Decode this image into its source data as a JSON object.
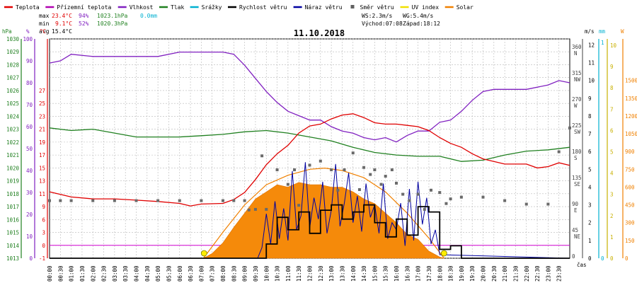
{
  "chart_data": {
    "type": "line",
    "title": "11.10.2018",
    "legend": [
      {
        "label": "Teplota",
        "color": "#e00000",
        "marker": "line"
      },
      {
        "label": "Přízemní teplota",
        "color": "#b000b0",
        "marker": "line"
      },
      {
        "label": "Vlhkost",
        "color": "#8020c0",
        "marker": "line"
      },
      {
        "label": "Tlak",
        "color": "#208020",
        "marker": "line"
      },
      {
        "label": "Srážky",
        "color": "#00b0d0",
        "marker": "line"
      },
      {
        "label": "Rychlost větru",
        "color": "#000000",
        "marker": "line"
      },
      {
        "label": "Náraz větru",
        "color": "#0000a0",
        "marker": "line"
      },
      {
        "label": "Směr větru",
        "color": "#606060",
        "marker": "square"
      },
      {
        "label": "UV index",
        "color": "#f0e000",
        "marker": "line"
      },
      {
        "label": "Solar",
        "color": "#f08000",
        "marker": "line"
      }
    ],
    "stats": {
      "max": {
        "label": "max",
        "temp": "23.4°C",
        "hum": "94%",
        "press": "1023.1hPa",
        "rain": "0.0mm"
      },
      "min": {
        "label": "min",
        "temp": "9.1°C",
        "hum": "52%",
        "press": "1020.3hPa"
      },
      "avg": {
        "label": "avg",
        "temp": "15.4°C"
      }
    },
    "wind_info": {
      "ws": "WS:2.3m/s",
      "wg": "WG:5.4m/s"
    },
    "sun_info": {
      "sunrise": "Východ:07:08",
      "sunset": "Západ:18:12"
    },
    "axes_left": {
      "pressure": {
        "unit": "hPa",
        "color": "#208020",
        "ticks": [
          1013,
          1014,
          1015,
          1016,
          1017,
          1018,
          1019,
          1020,
          1021,
          1022,
          1023,
          1024,
          1025,
          1026,
          1027,
          1028,
          1029,
          1030
        ]
      },
      "humidity": {
        "unit": "%",
        "color": "#8020c0",
        "ticks": [
          0,
          10,
          20,
          30,
          40,
          50,
          60,
          70,
          80,
          90,
          100
        ]
      },
      "temperature": {
        "unit": "°C",
        "color": "#e00000",
        "ticks": [
          -1,
          0,
          3,
          6,
          9,
          11,
          13,
          15,
          17,
          19,
          21,
          23,
          25,
          27
        ]
      }
    },
    "axes_right": {
      "direction": {
        "ticks": [
          "0",
          "45",
          "90",
          "135",
          "180",
          "225",
          "270",
          "315",
          "360"
        ],
        "labels": [
          "",
          "NE",
          "E",
          "SE",
          "S",
          "SW",
          "W",
          "NW",
          "N"
        ]
      },
      "wind_speed": {
        "unit": "m/s",
        "ticks": [
          0,
          1,
          2,
          3,
          4,
          5,
          6,
          7,
          8,
          9,
          10,
          11,
          12
        ]
      },
      "rain": {
        "unit": "mm",
        "color": "#00b0d0",
        "ticks": [
          0,
          1
        ]
      },
      "uv": {
        "color": "#c8b000",
        "ticks": [
          0,
          1,
          2,
          3,
          4,
          5,
          6,
          7,
          8,
          9,
          10
        ]
      },
      "solar": {
        "unit": "W",
        "color": "#f08000",
        "ticks": [
          0,
          150,
          300,
          450,
          600,
          750,
          900,
          1050,
          1200,
          1350,
          1500
        ]
      }
    },
    "x_axis": {
      "label": "čas",
      "ticks": [
        "00:00",
        "00:30",
        "01:00",
        "01:30",
        "02:00",
        "02:30",
        "03:00",
        "03:30",
        "04:00",
        "04:30",
        "05:00",
        "05:30",
        "06:00",
        "06:30",
        "07:00",
        "07:30",
        "08:00",
        "08:30",
        "09:00",
        "09:30",
        "10:00",
        "10:30",
        "11:00",
        "11:30",
        "12:00",
        "12:30",
        "13:00",
        "13:30",
        "14:00",
        "14:30",
        "15:00",
        "15:30",
        "16:00",
        "16:30",
        "17:00",
        "17:30",
        "18:00",
        "18:30",
        "19:00",
        "19:30",
        "20:00",
        "20:30",
        "21:00",
        "21:30",
        "22:00",
        "22:30",
        "23:00",
        "23:30"
      ]
    },
    "series": [
      {
        "name": "Teplota",
        "unit": "°C",
        "t": [
          0,
          0.5,
          1,
          2,
          3,
          4,
          5,
          6,
          6.5,
          7,
          8,
          8.5,
          9,
          9.5,
          10,
          10.5,
          11,
          11.5,
          12,
          12.5,
          13,
          13.5,
          14,
          14.5,
          15,
          15.5,
          16,
          16.5,
          17,
          17.5,
          18,
          18.5,
          19,
          19.5,
          20,
          20.5,
          21,
          22,
          22.5,
          23,
          23.5,
          24
        ],
        "v": [
          11.3,
          10.9,
          10.5,
          10.2,
          10.2,
          10.0,
          9.8,
          9.5,
          9.1,
          9.4,
          9.5,
          10.1,
          11.2,
          13.2,
          15.5,
          17.2,
          18.5,
          20.4,
          21.5,
          21.8,
          22.6,
          23.2,
          23.4,
          22.8,
          22.0,
          21.8,
          21.8,
          21.6,
          21.4,
          20.8,
          19.7,
          18.8,
          18.2,
          17.2,
          16.4,
          16.0,
          15.6,
          15.6,
          15.0,
          15.2,
          15.8,
          15.4
        ]
      },
      {
        "name": "Vlhkost",
        "unit": "%",
        "t": [
          0,
          0.5,
          1,
          2,
          3,
          4,
          5,
          6,
          7,
          8,
          8.5,
          9,
          9.5,
          10,
          10.5,
          11,
          11.5,
          12,
          12.5,
          13,
          13.5,
          14,
          14.5,
          15,
          15.5,
          16,
          16.5,
          17,
          17.5,
          18,
          18.5,
          19,
          19.5,
          20,
          20.5,
          21,
          22,
          23,
          23.5,
          24
        ],
        "v": [
          89,
          90,
          93,
          92,
          92,
          92,
          92,
          94,
          94,
          94,
          93,
          88,
          82,
          76,
          71,
          67,
          65,
          63,
          63,
          60,
          58,
          57,
          55,
          54,
          55,
          53,
          56,
          58,
          58,
          62,
          63,
          67,
          72,
          76,
          77,
          77,
          77,
          79,
          81,
          80
        ]
      },
      {
        "name": "Tlak",
        "unit": "hPa",
        "t": [
          0,
          1,
          2,
          3,
          4,
          5,
          6,
          7,
          8,
          9,
          10,
          11,
          12,
          13,
          14,
          15,
          16,
          17,
          18,
          19,
          20,
          21,
          22,
          23,
          24
        ],
        "v": [
          1023.1,
          1022.9,
          1023.0,
          1022.7,
          1022.4,
          1022.4,
          1022.4,
          1022.5,
          1022.6,
          1022.8,
          1022.9,
          1022.7,
          1022.4,
          1022.1,
          1021.6,
          1021.2,
          1021.0,
          1020.9,
          1020.9,
          1020.5,
          1020.6,
          1021.0,
          1021.3,
          1021.4,
          1021.6
        ]
      },
      {
        "name": "Rychlost větru",
        "unit": "m/s",
        "t": [
          0,
          9.5,
          10,
          10.5,
          11,
          11.5,
          12,
          12.5,
          13,
          13.5,
          14,
          14.5,
          15,
          15.5,
          16,
          16.5,
          17,
          17.5,
          18,
          18.5,
          19,
          24
        ],
        "v": [
          0,
          0,
          0.8,
          2.3,
          1.6,
          2.6,
          1.4,
          2.7,
          3.0,
          2.2,
          2.6,
          3.0,
          2.0,
          1.2,
          2.2,
          1.3,
          2.9,
          2.6,
          0.5,
          0.7,
          0,
          0
        ]
      },
      {
        "name": "Náraz větru",
        "unit": "m/s",
        "t": [
          0,
          9.6,
          9.8,
          10,
          10.2,
          10.4,
          10.6,
          10.8,
          11,
          11.2,
          11.4,
          11.6,
          11.8,
          12,
          12.2,
          12.4,
          12.6,
          12.8,
          13,
          13.2,
          13.4,
          13.6,
          13.8,
          14,
          14.2,
          14.4,
          14.6,
          14.8,
          15,
          15.2,
          15.4,
          15.6,
          15.8,
          16,
          16.2,
          16.4,
          16.6,
          16.8,
          17,
          17.2,
          17.4,
          17.6,
          17.8,
          18,
          24
        ],
        "v": [
          0,
          0,
          0.6,
          2.5,
          0.8,
          3.2,
          1.1,
          2.8,
          1.0,
          4.9,
          1.6,
          2.4,
          5.4,
          1.7,
          3.4,
          2.2,
          4.3,
          1.4,
          2.7,
          5.3,
          1.8,
          3.1,
          4.8,
          2.0,
          3.5,
          1.5,
          4.2,
          2.3,
          3.0,
          1.4,
          4.2,
          1.1,
          2.0,
          1.6,
          3.1,
          0.7,
          3.9,
          1.0,
          4.3,
          1.9,
          3.4,
          0.8,
          1.6,
          0.2,
          0
        ]
      },
      {
        "name": "Směr větru",
        "unit": "°",
        "t": [
          0,
          0.5,
          1,
          2,
          3,
          4,
          5,
          6,
          7,
          8,
          8.5,
          9,
          9.2,
          9.5,
          9.8,
          10,
          10.5,
          11,
          11.3,
          11.5,
          12,
          12.5,
          13,
          13.3,
          13.6,
          14,
          14.3,
          14.5,
          14.8,
          15,
          15.3,
          15.5,
          15.8,
          16,
          16.3,
          16.6,
          17,
          17.3,
          17.6,
          18,
          18.3,
          18.5,
          19,
          20,
          21,
          22,
          23,
          23.5,
          24
        ],
        "v": [
          99,
          99,
          99,
          99,
          99,
          99,
          99,
          99,
          99,
          99,
          99,
          99,
          83,
          84,
          176,
          84,
          152,
          127,
          152,
          91,
          160,
          167,
          152,
          117,
          152,
          181,
          118,
          156,
          144,
          152,
          127,
          141,
          152,
          129,
          110,
          99,
          110,
          84,
          117,
          113,
          94,
          102,
          105,
          105,
          99,
          93,
          93,
          183,
          224
        ]
      },
      {
        "name": "Solar",
        "unit": "W/m²",
        "t": [
          7.1,
          7.5,
          8,
          8.5,
          9,
          9.5,
          10,
          10.5,
          11,
          11.5,
          12,
          12.5,
          13,
          13.5,
          14,
          14.5,
          15,
          15.5,
          16,
          16.5,
          17,
          17.5,
          18,
          18.2
        ],
        "v": [
          0,
          40,
          130,
          260,
          380,
          500,
          560,
          620,
          600,
          640,
          620,
          620,
          600,
          600,
          560,
          500,
          460,
          380,
          300,
          200,
          160,
          60,
          10,
          0
        ]
      },
      {
        "name": "Solar (max)",
        "unit": "W/m²",
        "t": [
          7.1,
          8,
          9,
          10,
          11,
          12,
          12.7,
          13.5,
          14.5,
          15.5,
          16.5,
          17.5,
          18.2
        ],
        "v": [
          0,
          220,
          450,
          620,
          700,
          750,
          760,
          740,
          680,
          560,
          380,
          170,
          0
        ]
      }
    ],
    "markers": [
      {
        "label": "sunrise",
        "t": 7.13
      },
      {
        "label": "sunset",
        "t": 18.2
      }
    ]
  }
}
